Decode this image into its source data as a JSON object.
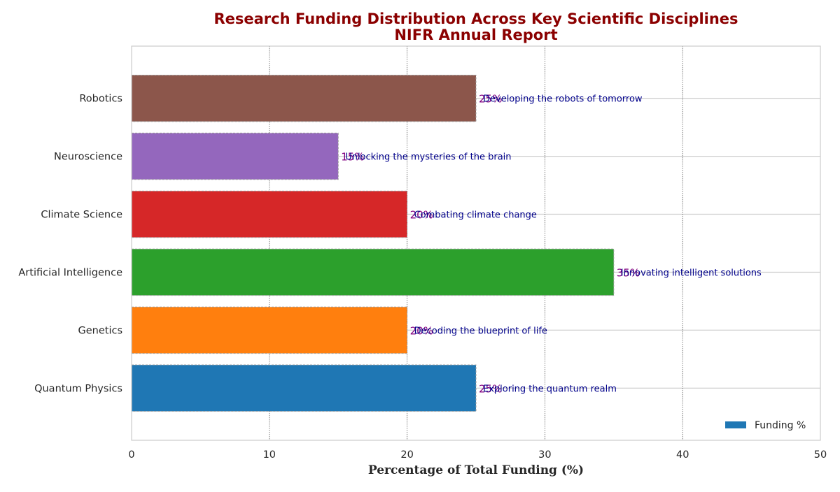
{
  "chart_data": {
    "type": "bar",
    "orientation": "horizontal",
    "title": "Research Funding Distribution Across Key Scientific Disciplines",
    "subtitle": "NIFR Annual Report",
    "xlabel": "Percentage of Total Funding (%)",
    "ylabel": "",
    "xlim": [
      0,
      50
    ],
    "xticks": [
      0,
      10,
      20,
      30,
      40,
      50
    ],
    "grid": "on",
    "legend_position": "bottom-right",
    "categories": [
      "Quantum Physics",
      "Genetics",
      "Artificial Intelligence",
      "Climate Science",
      "Neuroscience",
      "Robotics"
    ],
    "series": [
      {
        "name": "Funding %",
        "values": [
          25,
          20,
          35,
          20,
          15,
          25
        ],
        "value_labels": [
          "25%",
          "20%",
          "35%",
          "20%",
          "15%",
          "25%"
        ],
        "annotations": [
          "Exploring the quantum realm",
          "Decoding the blueprint of life",
          "Innovating intelligent solutions",
          "Combating climate change",
          "Unlocking the mysteries of the brain",
          "Developing the robots of tomorrow"
        ],
        "colors": [
          "#1f77b4",
          "#ff7f0e",
          "#2ca02c",
          "#d62728",
          "#9467bd",
          "#8c564b"
        ]
      }
    ],
    "colors": {
      "title": "#8b0000",
      "value_label": "#800080",
      "annotation": "#00008b",
      "legend_patch": "#1f77b4"
    }
  }
}
